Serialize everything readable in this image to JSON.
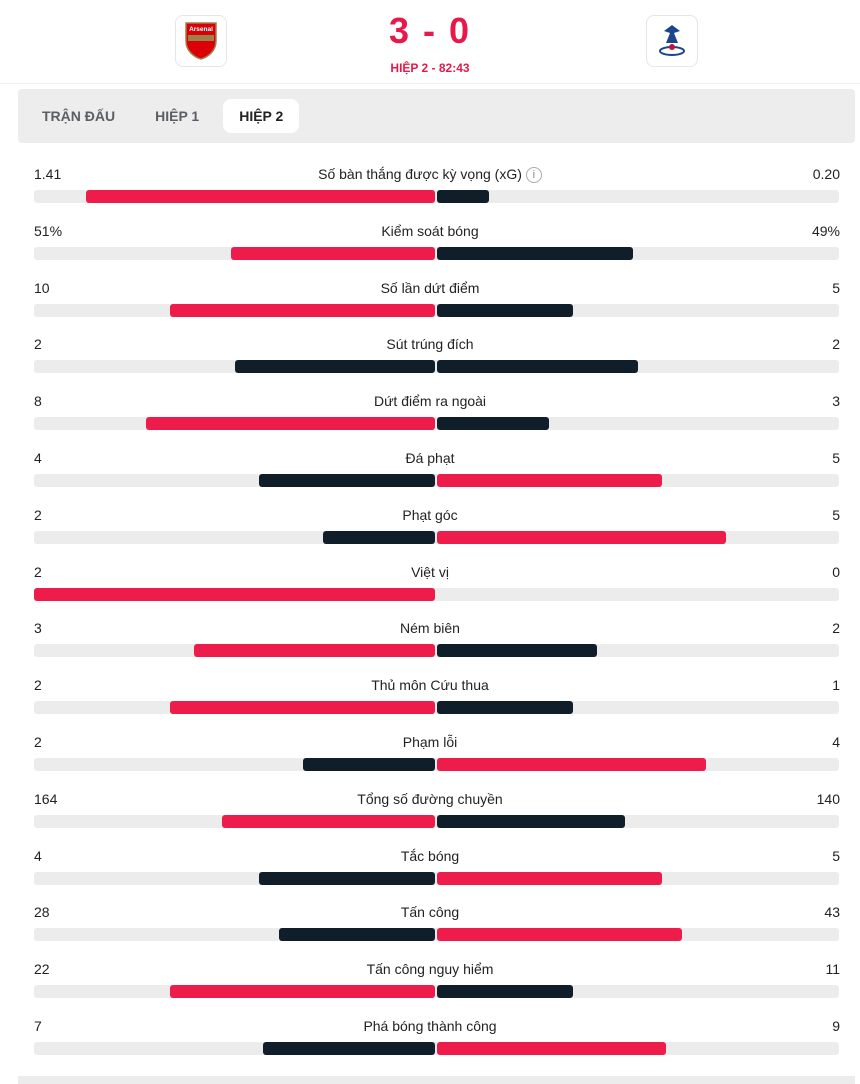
{
  "header": {
    "score": "3 - 0",
    "period": "HIỆP 2 - 82:43",
    "home_logo_text": "Arsenal",
    "away_logo_text": "Crystal Palace"
  },
  "tabs": [
    {
      "label": "TRẬN ĐẤU",
      "active": false
    },
    {
      "label": "HIỆP 1",
      "active": false
    },
    {
      "label": "HIỆP 2",
      "active": true
    }
  ],
  "colors": {
    "winner": "#ee1c4b",
    "loser": "#0f1e28",
    "track": "#ececec"
  },
  "stats": [
    {
      "label": "Số bàn thắng được kỳ vọng (xG)",
      "home": "1.41",
      "away": "0.20",
      "home_fill": 0.87,
      "away_fill": 0.13,
      "info": "i"
    },
    {
      "label": "Kiểm soát bóng",
      "home": "51%",
      "away": "49%",
      "home_fill": 0.51,
      "away_fill": 0.49
    },
    {
      "label": "Số lần dứt điểm",
      "home": "10",
      "away": "5",
      "home_fill": 0.66,
      "away_fill": 0.34
    },
    {
      "label": "Sút trúng đích",
      "home": "2",
      "away": "2",
      "home_fill": 0.5,
      "away_fill": 0.5
    },
    {
      "label": "Dứt điểm ra ngoài",
      "home": "8",
      "away": "3",
      "home_fill": 0.72,
      "away_fill": 0.28
    },
    {
      "label": "Đá phạt",
      "home": "4",
      "away": "5",
      "home_fill": 0.44,
      "away_fill": 0.56
    },
    {
      "label": "Phạt góc",
      "home": "2",
      "away": "5",
      "home_fill": 0.28,
      "away_fill": 0.72
    },
    {
      "label": "Việt vị",
      "home": "2",
      "away": "0",
      "home_fill": 1.0,
      "away_fill": 0
    },
    {
      "label": "Ném biên",
      "home": "3",
      "away": "2",
      "home_fill": 0.6,
      "away_fill": 0.4
    },
    {
      "label": "Thủ môn Cứu thua",
      "home": "2",
      "away": "1",
      "home_fill": 0.66,
      "away_fill": 0.34
    },
    {
      "label": "Phạm lỗi",
      "home": "2",
      "away": "4",
      "home_fill": 0.33,
      "away_fill": 0.67
    },
    {
      "label": "Tổng số đường chuyền",
      "home": "164",
      "away": "140",
      "home_fill": 0.53,
      "away_fill": 0.47
    },
    {
      "label": "Tắc bóng",
      "home": "4",
      "away": "5",
      "home_fill": 0.44,
      "away_fill": 0.56
    },
    {
      "label": "Tấn công",
      "home": "28",
      "away": "43",
      "home_fill": 0.39,
      "away_fill": 0.61
    },
    {
      "label": "Tấn công nguy hiểm",
      "home": "22",
      "away": "11",
      "home_fill": 0.66,
      "away_fill": 0.34
    },
    {
      "label": "Phá bóng thành công",
      "home": "7",
      "away": "9",
      "home_fill": 0.43,
      "away_fill": 0.57
    }
  ]
}
